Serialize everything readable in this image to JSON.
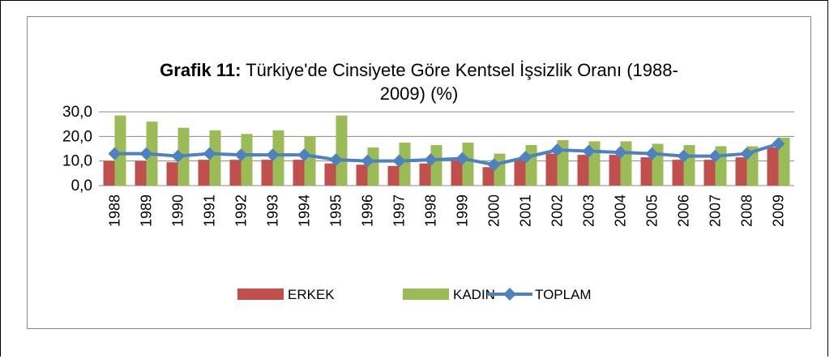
{
  "chart_data": {
    "type": "bar",
    "title_label": "Grafik 11:",
    "title": "Türkiye'de Cinsiyete Göre Kentsel İşsizlik Oranı (1988-2009) (%)",
    "categories": [
      "1988",
      "1989",
      "1990",
      "1991",
      "1992",
      "1993",
      "1994",
      "1995",
      "1996",
      "1997",
      "1998",
      "1999",
      "2000",
      "2001",
      "2002",
      "2003",
      "2004",
      "2005",
      "2006",
      "2007",
      "2008",
      "2009"
    ],
    "series": [
      {
        "name": "ERKEK",
        "type": "bar",
        "color": "#c0504d",
        "values": [
          10,
          10,
          9.5,
          10.5,
          10.5,
          10.5,
          10.5,
          9,
          8.5,
          8,
          9,
          10.5,
          7.5,
          10.5,
          13,
          12.5,
          12.5,
          11.5,
          10.5,
          10.5,
          11.5,
          15.5
        ]
      },
      {
        "name": "KADIN",
        "type": "bar",
        "color": "#9bbb59",
        "values": [
          28.5,
          26,
          23.5,
          22.5,
          21,
          22.5,
          20,
          28.5,
          15.5,
          17.5,
          16.5,
          17.5,
          13,
          16.5,
          18.5,
          18,
          18,
          17,
          16.5,
          16,
          16,
          19.5
        ]
      },
      {
        "name": "TOPLAM",
        "type": "line",
        "color": "#4f81bd",
        "values": [
          13,
          13,
          12,
          13,
          12.5,
          12.5,
          12.5,
          10.5,
          10,
          10,
          10.5,
          11,
          8.5,
          11.5,
          14.5,
          14,
          13.5,
          13,
          12,
          12,
          13,
          17
        ]
      }
    ],
    "ylim": [
      0,
      30
    ],
    "yticks": [
      {
        "value": 0,
        "label": "0,0"
      },
      {
        "value": 10,
        "label": "10,0"
      },
      {
        "value": 20,
        "label": "20,0"
      },
      {
        "value": 30,
        "label": "30,0"
      }
    ],
    "grid": true,
    "legend": "bottom"
  }
}
